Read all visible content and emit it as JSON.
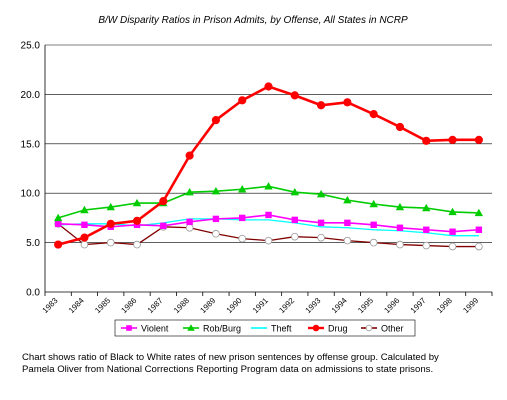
{
  "chart_data": {
    "type": "line",
    "title": "B/W Disparity Ratios in Prison Admits,  by Offense, All States in NCRP",
    "categories": [
      "1983",
      "1984",
      "1985",
      "1986",
      "1987",
      "1988",
      "1989",
      "1990",
      "1991",
      "1992",
      "1993",
      "1994",
      "1995",
      "1996",
      "1997",
      "1998",
      "1999"
    ],
    "xlabel": "",
    "ylabel": "",
    "ylim": [
      0,
      25
    ],
    "yticks": [
      "0.0",
      "5.0",
      "10.0",
      "15.0",
      "20.0",
      "25.0"
    ],
    "grid": "horizontal-major",
    "legend_position": "bottom",
    "series": [
      {
        "name": "Violent",
        "color": "#ff00ff",
        "marker": "square",
        "values": [
          6.9,
          6.8,
          6.6,
          6.8,
          6.7,
          7.1,
          7.4,
          7.5,
          7.8,
          7.3,
          7.0,
          7.0,
          6.8,
          6.5,
          6.3,
          6.1,
          6.3
        ]
      },
      {
        "name": "Rob/Burg",
        "color": "#00cc00",
        "marker": "triangle",
        "values": [
          7.5,
          8.3,
          8.6,
          9.0,
          9.0,
          10.1,
          10.2,
          10.4,
          10.7,
          10.1,
          9.9,
          9.3,
          8.9,
          8.6,
          8.5,
          8.1,
          8.0
        ]
      },
      {
        "name": "Theft",
        "color": "#00ffff",
        "marker": "none",
        "values": [
          6.8,
          6.9,
          6.9,
          6.7,
          7.0,
          7.4,
          7.4,
          7.3,
          7.3,
          7.0,
          6.6,
          6.5,
          6.3,
          6.2,
          6.0,
          5.7,
          5.7
        ]
      },
      {
        "name": "Drug",
        "color": "#ff0000",
        "marker": "circle",
        "values": [
          4.8,
          5.5,
          6.9,
          7.2,
          9.2,
          13.8,
          17.4,
          19.4,
          20.8,
          19.9,
          18.9,
          19.2,
          18.0,
          16.7,
          15.3,
          15.4,
          15.4
        ]
      },
      {
        "name": "Other",
        "color": "#800000",
        "marker": "open-circle",
        "values": [
          6.9,
          4.8,
          5.0,
          4.8,
          6.6,
          6.5,
          5.9,
          5.4,
          5.2,
          5.6,
          5.5,
          5.2,
          5.0,
          4.8,
          4.7,
          4.6,
          4.6
        ]
      }
    ]
  },
  "caption": {
    "line1": "Chart shows ratio of Black to White rates of new prison sentences by offense group.  Calculated by",
    "line2": "Pamela Oliver from National Corrections Reporting Program data on admissions to state prisons."
  }
}
